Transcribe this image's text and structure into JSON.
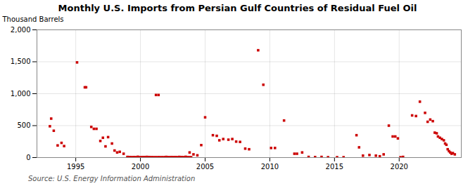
{
  "chart_data": {
    "type": "scatter",
    "title": "Monthly U.S. Imports from Persian Gulf Countries of Residual Fuel Oil",
    "ylabel": "Thousand Barrels",
    "annotations": [
      "Source: U.S. Energy Information Administration"
    ],
    "color": "#cc0000",
    "marker": "square",
    "grid": true,
    "xlim": [
      1992.0,
      2024.8
    ],
    "xticks": [
      1995,
      2000,
      2005,
      2010,
      2015,
      2020
    ],
    "ylim": [
      0,
      2000
    ],
    "yticks": [
      0,
      500,
      {
        "value": 1000,
        "label": "1,000"
      },
      {
        "value": 1500,
        "label": "1,500"
      },
      {
        "value": 2000,
        "label": "2,000"
      }
    ],
    "x": [
      1993.0,
      1993.1,
      1993.3,
      1993.6,
      1993.9,
      1994.1,
      1995.1,
      1995.7,
      1995.8,
      1996.2,
      1996.4,
      1996.6,
      1996.9,
      1997.1,
      1997.3,
      1997.5,
      1997.8,
      1998.0,
      1998.2,
      1998.4,
      1998.7,
      1999.0,
      1999.2,
      1999.5,
      1999.8,
      2000.1,
      2000.3,
      2000.5,
      2000.7,
      2001.2,
      2001.4,
      2002.0,
      2002.4,
      2002.7,
      2003.0,
      2003.2,
      2003.5,
      2003.8,
      2004.1,
      2004.4,
      2004.7,
      2005.0,
      2005.6,
      2005.9,
      2006.1,
      2006.4,
      2006.8,
      2007.1,
      2007.4,
      2007.7,
      2008.1,
      2008.4,
      2009.1,
      2009.5,
      2010.1,
      2010.4,
      2011.1,
      2011.9,
      2012.1,
      2012.5,
      2013.0,
      2013.5,
      2014.0,
      2014.5,
      2015.2,
      2015.7,
      2016.7,
      2016.9,
      2017.2,
      2017.7,
      2018.2,
      2018.5,
      2018.8,
      2019.2,
      2019.5,
      2019.7,
      2019.9,
      2020.1,
      2020.3,
      2021.0,
      2021.3,
      2021.6,
      2022.0,
      2022.2,
      2022.4,
      2022.6,
      2022.75,
      2022.9,
      2023.0,
      2023.15,
      2023.3,
      2023.45,
      2023.55,
      2023.65,
      2023.75,
      2023.85,
      2023.95,
      2024.05,
      2024.15,
      2024.3,
      1999.0,
      1999.08,
      1999.17,
      1999.25,
      1999.33,
      1999.42,
      1999.5,
      1999.58,
      1999.67,
      1999.75,
      1999.83,
      1999.92,
      2000.0,
      2000.08,
      2000.17,
      2000.25,
      2000.33,
      2000.42,
      2000.5,
      2000.58,
      2000.67,
      2000.75,
      2000.83,
      2000.92,
      2001.0,
      2001.08,
      2001.17,
      2001.25,
      2001.33,
      2001.42,
      2001.5,
      2001.58,
      2001.67,
      2001.75,
      2001.83,
      2001.92,
      2002.0,
      2002.08,
      2002.17,
      2002.25,
      2002.33,
      2002.42,
      2002.5,
      2002.58,
      2002.67,
      2002.75,
      2002.83,
      2002.92,
      2003.0,
      2003.08,
      2003.17,
      2003.25,
      2003.33,
      2003.42,
      2003.5,
      2003.58,
      2003.67,
      2003.75,
      2003.83,
      2003.92
    ],
    "values": [
      490,
      610,
      420,
      190,
      230,
      180,
      1490,
      1100,
      1100,
      480,
      450,
      450,
      260,
      310,
      175,
      320,
      220,
      110,
      80,
      90,
      60,
      10,
      8,
      5,
      12,
      5,
      8,
      10,
      8,
      980,
      980,
      10,
      8,
      5,
      10,
      8,
      12,
      80,
      50,
      35,
      195,
      630,
      350,
      340,
      270,
      290,
      280,
      290,
      250,
      245,
      140,
      130,
      1680,
      1140,
      150,
      150,
      580,
      60,
      60,
      80,
      10,
      8,
      10,
      5,
      5,
      5,
      350,
      160,
      30,
      40,
      30,
      20,
      50,
      500,
      330,
      330,
      300,
      5,
      10,
      660,
      650,
      875,
      700,
      560,
      595,
      570,
      390,
      380,
      330,
      310,
      290,
      270,
      220,
      200,
      130,
      100,
      80,
      60,
      70,
      50,
      2,
      3,
      5,
      2,
      4,
      2,
      3,
      5,
      2,
      3,
      4,
      2,
      3,
      2,
      4,
      3,
      2,
      5,
      3,
      2,
      4,
      2,
      3,
      5,
      2,
      3,
      4,
      2,
      3,
      5,
      2,
      3,
      4,
      2,
      3,
      5,
      2,
      3,
      5,
      2,
      4,
      2,
      3,
      5,
      2,
      3,
      4,
      2,
      3,
      2,
      4,
      3,
      2,
      5,
      3,
      2,
      4,
      2,
      3,
      5
    ]
  }
}
